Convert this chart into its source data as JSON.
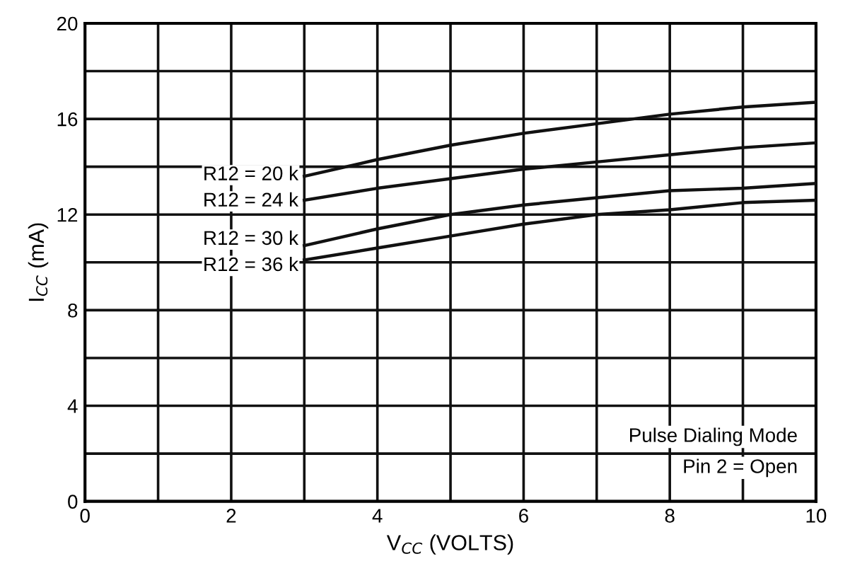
{
  "chart_data": {
    "type": "line",
    "xlabel": "V$_{CC}$ (VOLTS)",
    "ylabel": "I$_{CC}$ (mA)",
    "x": [
      3,
      4,
      5,
      6,
      7,
      8,
      9,
      10
    ],
    "series": [
      {
        "name": "R12 = 20 k",
        "color": "#111111",
        "values": [
          13.6,
          14.3,
          14.9,
          15.4,
          15.8,
          16.2,
          16.5,
          16.7
        ]
      },
      {
        "name": "R12 = 24 k",
        "color": "#111111",
        "values": [
          12.6,
          13.1,
          13.5,
          13.9,
          14.2,
          14.5,
          14.8,
          15.0
        ]
      },
      {
        "name": "R12 = 30 k",
        "color": "#111111",
        "values": [
          10.7,
          11.4,
          12.0,
          12.4,
          12.7,
          13.0,
          13.1,
          13.3
        ]
      },
      {
        "name": "R12 = 36 k",
        "color": "#111111",
        "values": [
          10.1,
          10.6,
          11.1,
          11.6,
          12.0,
          12.2,
          12.5,
          12.6
        ]
      }
    ],
    "xlim": [
      0,
      10
    ],
    "ylim": [
      0,
      20
    ],
    "xticks": [
      0,
      {
        "value": 1,
        "label": null
      },
      2,
      {
        "value": 3,
        "label": null
      },
      4,
      {
        "value": 5,
        "label": null
      },
      6,
      {
        "value": 7,
        "label": null
      },
      8,
      {
        "value": 9,
        "label": null
      },
      10
    ],
    "yticks": [
      0,
      {
        "value": 2,
        "label": null
      },
      4,
      {
        "value": 6,
        "label": null
      },
      8,
      {
        "value": 10,
        "label": null
      },
      12,
      {
        "value": 14,
        "label": null
      },
      16,
      {
        "value": 18,
        "label": null
      },
      20
    ],
    "grid": true,
    "marker": "none",
    "line_style": "solid",
    "legend": false,
    "annotations": [
      "Pulse Dialing Mode",
      "Pin 2 = Open"
    ]
  }
}
